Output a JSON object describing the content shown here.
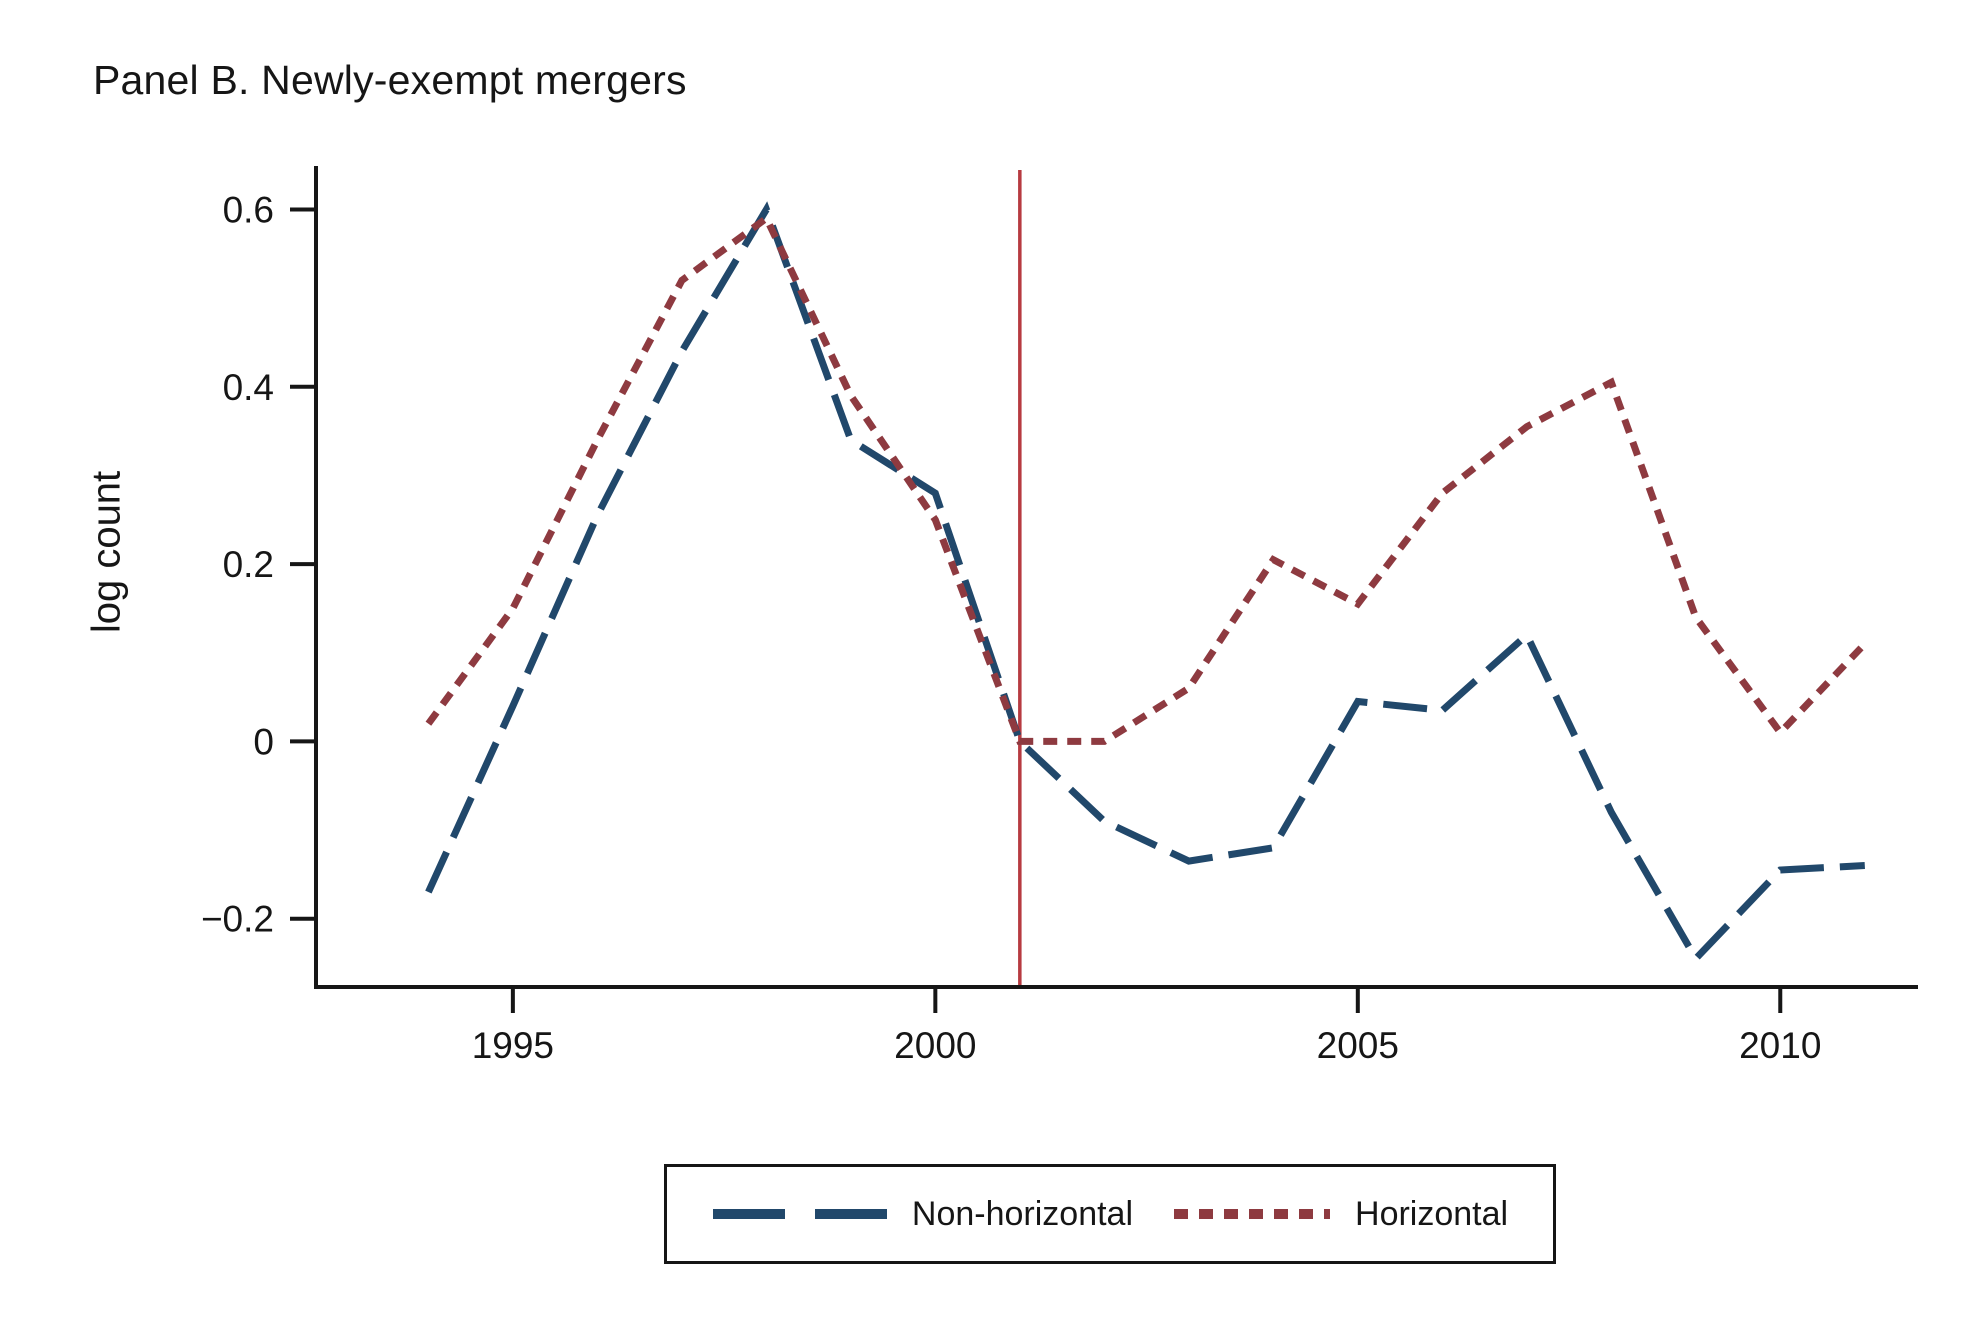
{
  "page": {
    "title": "Panel B. Newly-exempt mergers"
  },
  "chart_data": {
    "type": "line",
    "title": "Panel B. Newly-exempt mergers",
    "xlabel": "",
    "ylabel": "log count",
    "x": [
      1994,
      1995,
      1996,
      1997,
      1998,
      1999,
      2000,
      2001,
      2002,
      2003,
      2004,
      2005,
      2006,
      2007,
      2008,
      2009,
      2010,
      2011
    ],
    "series": [
      {
        "name": "Non-horizontal",
        "color": "#21486b",
        "dash": [
          44,
          16
        ],
        "legend_dash": [
          72,
          30
        ],
        "values": [
          -0.17,
          0.04,
          0.255,
          0.44,
          0.6,
          0.34,
          0.28,
          0.0,
          -0.09,
          -0.135,
          -0.12,
          0.045,
          0.035,
          0.12,
          -0.08,
          -0.245,
          -0.145,
          -0.14
        ]
      },
      {
        "name": "Horizontal",
        "color": "#8e3a40",
        "dash": [
          14,
          10
        ],
        "legend_dash": [
          14,
          11
        ],
        "values": [
          0.02,
          0.15,
          0.34,
          0.52,
          0.59,
          0.39,
          0.25,
          0.0,
          0.0,
          0.06,
          0.205,
          0.155,
          0.28,
          0.355,
          0.405,
          0.14,
          0.01,
          0.11
        ]
      }
    ],
    "xticks": [
      1995,
      2000,
      2005,
      2010
    ],
    "yticks": [
      0.6,
      0.4,
      0.2,
      0,
      -0.2
    ],
    "ytick_labels": [
      "0.6",
      "0.4",
      "0.2",
      "0",
      "−0.2"
    ],
    "xlim": [
      1992.67,
      2011.63
    ],
    "ylim": [
      -0.277,
      0.649
    ],
    "grid": false,
    "legend_position": "bottom-center",
    "vline": {
      "x": 2001,
      "color": "#b73b41"
    }
  },
  "legend": {
    "items": [
      {
        "label": "Non-horizontal"
      },
      {
        "label": "Horizontal"
      }
    ]
  },
  "colors": {
    "axis": "#161616",
    "text": "#161616",
    "background": "#ffffff"
  }
}
